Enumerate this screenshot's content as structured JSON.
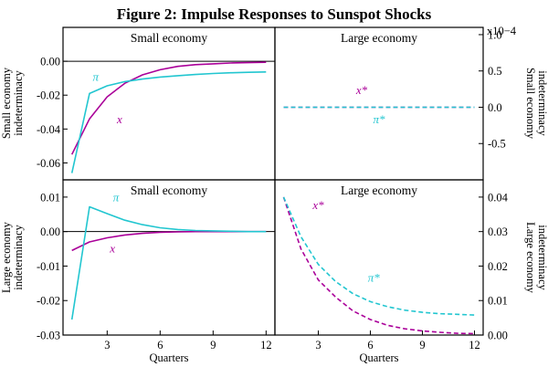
{
  "colors": {
    "magenta": "#aa0099",
    "cyan": "#22c6d0",
    "axis": "#000000"
  },
  "chart_data": [
    {
      "type": "line",
      "title": "Small economy",
      "row_label": "Small economy indeterminacy",
      "figure_title": "Figure 2: Impulse Responses to Sunspot Shocks",
      "x": [
        1,
        2,
        3,
        4,
        5,
        6,
        7,
        8,
        9,
        10,
        11,
        12
      ],
      "xlim": [
        0.5,
        12.5
      ],
      "ylim": [
        -0.07,
        0.02
      ],
      "yticks": [
        0.0,
        -0.02,
        -0.04,
        -0.06
      ],
      "ytick_labels": [
        "0.00",
        "-0.02",
        "-0.04",
        "-0.06"
      ],
      "xticks": [],
      "series": [
        {
          "name": "x",
          "label": "x",
          "color": "magenta",
          "dashed": false,
          "values": [
            -0.055,
            -0.034,
            -0.021,
            -0.013,
            -0.008,
            -0.005,
            -0.003,
            -0.002,
            -0.0015,
            -0.001,
            -0.0008,
            -0.0006
          ]
        },
        {
          "name": "pi",
          "label": "π",
          "color": "cyan",
          "dashed": false,
          "values": [
            -0.066,
            -0.019,
            -0.0145,
            -0.012,
            -0.0105,
            -0.0093,
            -0.0085,
            -0.0078,
            -0.0072,
            -0.0068,
            -0.0065,
            -0.0063
          ]
        }
      ]
    },
    {
      "type": "line",
      "title": "Large economy",
      "row_label": "Small economy indeterminacy",
      "y_scale_label": "x10−4",
      "x": [
        1,
        2,
        3,
        4,
        5,
        6,
        7,
        8,
        9,
        10,
        11,
        12
      ],
      "xlim": [
        0.5,
        12.5
      ],
      "ylim": [
        -1.0,
        1.1
      ],
      "yticks": [
        1.0,
        0.5,
        0.0,
        -0.5
      ],
      "ytick_labels": [
        "1.0",
        "0.5",
        "0.0",
        "-0.5"
      ],
      "xticks": [],
      "series": [
        {
          "name": "x*",
          "label": "x*",
          "color": "magenta",
          "dashed": true,
          "values": [
            0,
            0,
            0,
            0,
            0,
            0,
            0,
            0,
            0,
            0,
            0,
            0
          ]
        },
        {
          "name": "pi*",
          "label": "π*",
          "color": "cyan",
          "dashed": true,
          "values": [
            0,
            0,
            0,
            0,
            0,
            0,
            0,
            0,
            0,
            0,
            0,
            0
          ]
        }
      ]
    },
    {
      "type": "line",
      "title": "Small economy",
      "row_label": "Large economy indeterminacy",
      "x": [
        1,
        2,
        3,
        4,
        5,
        6,
        7,
        8,
        9,
        10,
        11,
        12
      ],
      "xlim": [
        0.5,
        12.5
      ],
      "ylim": [
        -0.03,
        0.015
      ],
      "yticks": [
        0.01,
        0.0,
        -0.01,
        -0.02,
        -0.03
      ],
      "ytick_labels": [
        "0.01",
        "0.00",
        "-0.01",
        "-0.02",
        "-0.03"
      ],
      "xticks": [
        3,
        6,
        9,
        12
      ],
      "xlabel": "Quarters",
      "series": [
        {
          "name": "x",
          "label": "x",
          "color": "magenta",
          "dashed": false,
          "values": [
            -0.0055,
            -0.003,
            -0.0018,
            -0.001,
            -0.0005,
            -0.0002,
            -0.0001,
            0,
            0,
            0,
            0,
            0
          ]
        },
        {
          "name": "pi",
          "label": "π",
          "color": "cyan",
          "dashed": false,
          "values": [
            -0.0255,
            0.0072,
            0.0052,
            0.0033,
            0.002,
            0.0011,
            0.0006,
            0.0003,
            0.0002,
            0.0001,
            0,
            0
          ]
        }
      ]
    },
    {
      "type": "line",
      "title": "Large economy",
      "row_label": "Large economy indeterminacy",
      "x": [
        1,
        2,
        3,
        4,
        5,
        6,
        7,
        8,
        9,
        10,
        11,
        12
      ],
      "xlim": [
        0.5,
        12.5
      ],
      "ylim": [
        0.0,
        0.045
      ],
      "yticks": [
        0.04,
        0.03,
        0.02,
        0.01,
        0.0
      ],
      "ytick_labels": [
        "0.04",
        "0.03",
        "0.02",
        "0.01",
        "0.00"
      ],
      "xticks": [
        3,
        6,
        9,
        12
      ],
      "xlabel": "Quarters",
      "series": [
        {
          "name": "x*",
          "label": "x*",
          "color": "magenta",
          "dashed": true,
          "values": [
            0.04,
            0.025,
            0.016,
            0.011,
            0.007,
            0.0045,
            0.0028,
            0.0018,
            0.0012,
            0.0008,
            0.0005,
            0.0004
          ]
        },
        {
          "name": "pi*",
          "label": "π*",
          "color": "cyan",
          "dashed": true,
          "values": [
            0.04,
            0.0285,
            0.0205,
            0.0155,
            0.012,
            0.0097,
            0.0082,
            0.0072,
            0.0066,
            0.0062,
            0.006,
            0.0058
          ]
        }
      ]
    }
  ]
}
